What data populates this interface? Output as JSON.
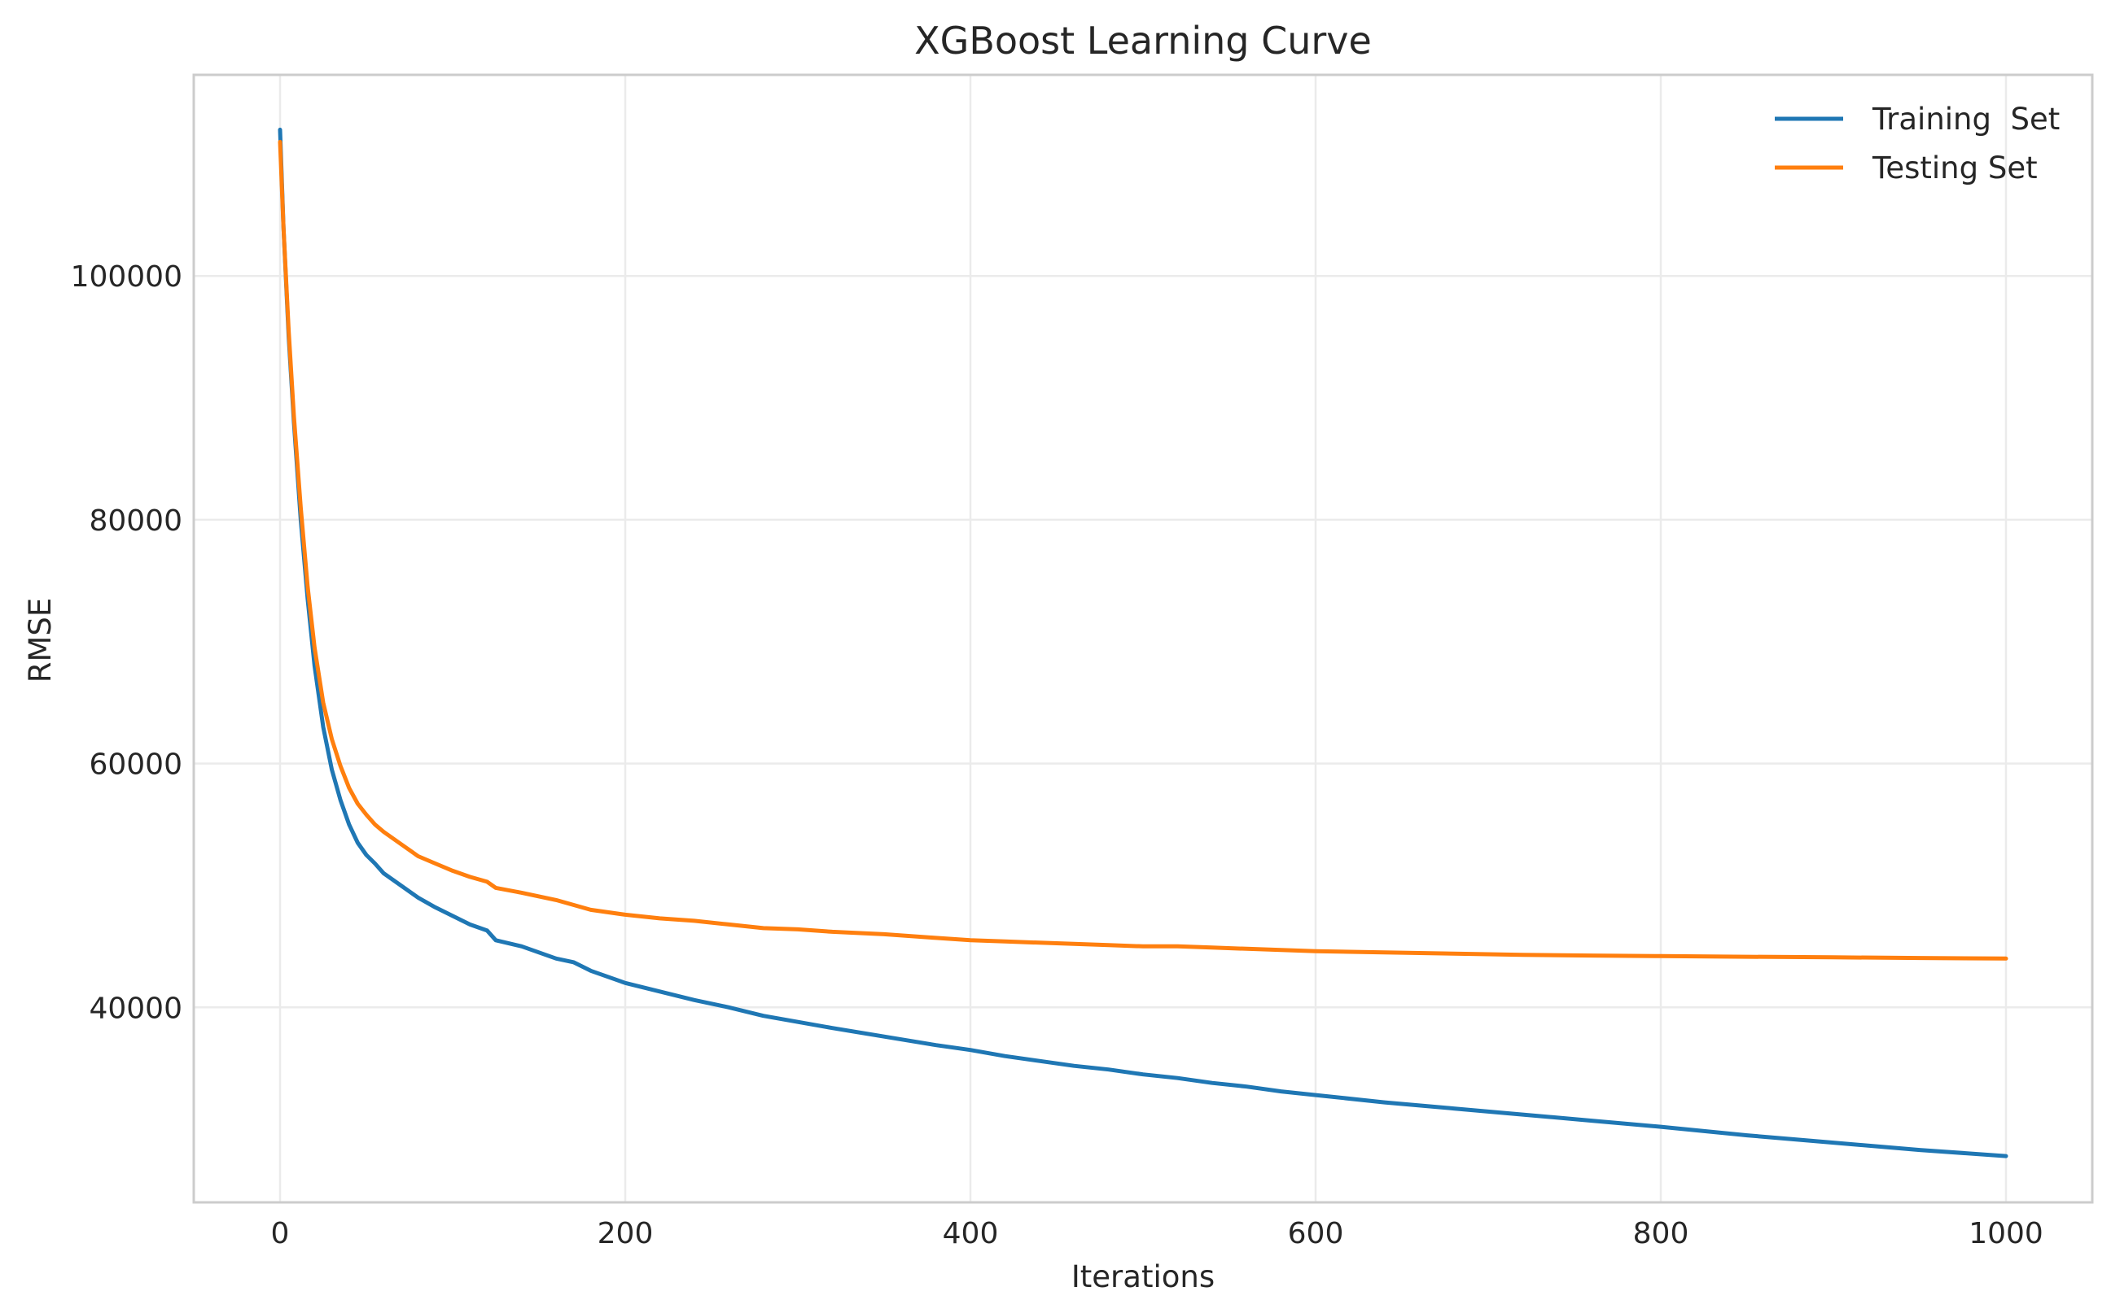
{
  "chart_data": {
    "type": "line",
    "title": "XGBoost Learning Curve",
    "xlabel": "Iterations",
    "ylabel": "RMSE",
    "xlim": [
      -50,
      1050
    ],
    "ylim": [
      24000,
      116500
    ],
    "xticks": [
      0,
      200,
      400,
      600,
      800,
      1000
    ],
    "yticks": [
      40000,
      60000,
      80000,
      100000
    ],
    "grid": true,
    "legend_position": "top-right",
    "series": [
      {
        "name": "Training  Set",
        "color": "#1f77b4",
        "x": [
          0,
          2,
          5,
          8,
          12,
          16,
          20,
          25,
          30,
          35,
          40,
          45,
          50,
          55,
          60,
          70,
          80,
          90,
          100,
          110,
          120,
          125,
          140,
          160,
          170,
          180,
          200,
          220,
          240,
          260,
          280,
          300,
          320,
          350,
          380,
          400,
          420,
          440,
          460,
          480,
          500,
          520,
          540,
          560,
          580,
          600,
          640,
          680,
          720,
          760,
          800,
          850,
          900,
          950,
          1000
        ],
        "y": [
          112000,
          104000,
          95000,
          88000,
          80000,
          73500,
          68000,
          63000,
          59500,
          57000,
          55000,
          53500,
          52500,
          51800,
          51000,
          50000,
          49000,
          48200,
          47500,
          46800,
          46300,
          45500,
          45000,
          44000,
          43700,
          43000,
          42000,
          41300,
          40600,
          40000,
          39300,
          38800,
          38300,
          37600,
          36900,
          36500,
          36000,
          35600,
          35200,
          34900,
          34500,
          34200,
          33800,
          33500,
          33100,
          32800,
          32200,
          31700,
          31200,
          30700,
          30200,
          29500,
          28900,
          28300,
          27800
        ]
      },
      {
        "name": "Testing Set",
        "color": "#ff7f0e",
        "x": [
          0,
          2,
          5,
          8,
          12,
          16,
          20,
          25,
          30,
          35,
          40,
          45,
          50,
          55,
          60,
          70,
          80,
          90,
          100,
          110,
          120,
          125,
          140,
          160,
          170,
          180,
          200,
          220,
          240,
          260,
          280,
          300,
          320,
          350,
          380,
          400,
          420,
          440,
          460,
          480,
          500,
          520,
          540,
          560,
          580,
          600,
          640,
          680,
          720,
          760,
          800,
          850,
          900,
          950,
          1000
        ],
        "y": [
          111000,
          104000,
          95500,
          88500,
          81000,
          74500,
          69500,
          65000,
          62000,
          59800,
          58000,
          56700,
          55800,
          55000,
          54400,
          53400,
          52400,
          51800,
          51200,
          50700,
          50300,
          49800,
          49400,
          48800,
          48400,
          48000,
          47600,
          47300,
          47100,
          46800,
          46500,
          46400,
          46200,
          46000,
          45700,
          45500,
          45400,
          45300,
          45200,
          45100,
          45000,
          45000,
          44900,
          44800,
          44700,
          44600,
          44500,
          44400,
          44300,
          44250,
          44200,
          44150,
          44100,
          44050,
          44000
        ]
      }
    ]
  }
}
